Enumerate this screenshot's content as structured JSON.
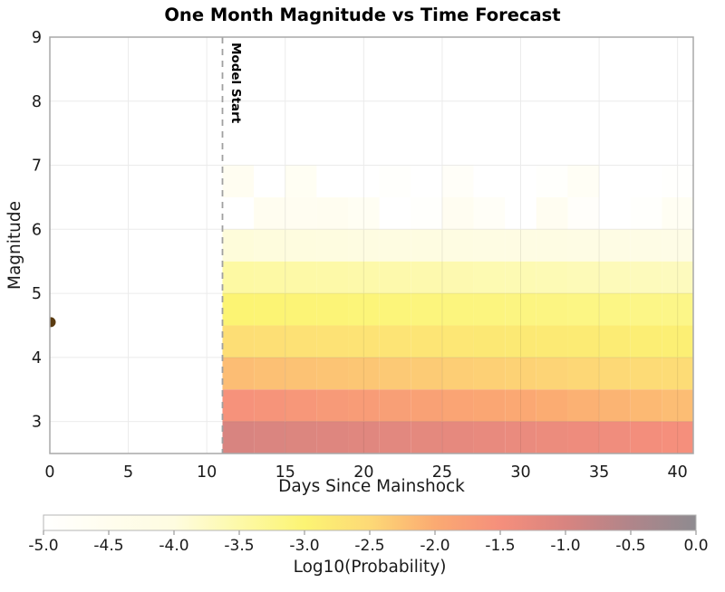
{
  "title": "One Month Magnitude vs Time Forecast",
  "chart_data": {
    "type": "heatmap",
    "title": "One Month Magnitude vs Time Forecast",
    "xlabel": "Days Since Mainshock",
    "ylabel": "Magnitude",
    "xlim": [
      0,
      41
    ],
    "ylim": [
      2.5,
      9
    ],
    "x_ticks": [
      0,
      5,
      10,
      15,
      20,
      25,
      30,
      35,
      40
    ],
    "y_ticks": [
      3,
      4,
      5,
      6,
      7,
      8,
      9
    ],
    "grid": true,
    "grid_color": "#ebebeb",
    "axis_border_color": "#a8a8a8",
    "model_start": {
      "day": 11,
      "label": "Model Start",
      "line_color": "#a0a0a0",
      "line_style": "dashed"
    },
    "mainshock_point": {
      "day": 0,
      "magnitude": 4.55,
      "color": "#5a3b10"
    },
    "bins": {
      "day_edges": [
        11,
        13,
        15,
        17,
        19,
        21,
        23,
        25,
        27,
        29,
        31,
        33,
        35,
        37,
        39,
        41
      ],
      "magnitude_edges": [
        2.5,
        3.0,
        3.5,
        4.0,
        4.5,
        5.0,
        5.5,
        6.0,
        6.5,
        7.0
      ],
      "rows_order": "magnitude ascending (bottom row first)"
    },
    "values_log10_probability": [
      [
        -1.0,
        -1.03,
        -1.07,
        -1.1,
        -1.14,
        -1.17,
        -1.21,
        -1.24,
        -1.28,
        -1.31,
        -1.35,
        -1.38,
        -1.42,
        -1.46,
        -1.5
      ],
      [
        -1.55,
        -1.6,
        -1.65,
        -1.7,
        -1.74,
        -1.79,
        -1.84,
        -1.88,
        -1.93,
        -1.97,
        -2.02,
        -2.07,
        -2.11,
        -2.16,
        -2.2
      ],
      [
        -2.2,
        -2.23,
        -2.25,
        -2.28,
        -2.3,
        -2.33,
        -2.35,
        -2.38,
        -2.4,
        -2.43,
        -2.45,
        -2.48,
        -2.5,
        -2.53,
        -2.55
      ],
      [
        -2.6,
        -2.62,
        -2.64,
        -2.66,
        -2.69,
        -2.71,
        -2.73,
        -2.75,
        -2.77,
        -2.79,
        -2.81,
        -2.84,
        -2.86,
        -2.88,
        -2.9
      ],
      [
        -3.0,
        -3.01,
        -3.03,
        -3.04,
        -3.06,
        -3.07,
        -3.09,
        -3.1,
        -3.11,
        -3.13,
        -3.14,
        -3.16,
        -3.17,
        -3.19,
        -3.2
      ],
      [
        -3.45,
        -3.47,
        -3.49,
        -3.5,
        -3.52,
        -3.54,
        -3.55,
        -3.57,
        -3.59,
        -3.6,
        -3.62,
        -3.64,
        -3.66,
        -3.68,
        -3.7
      ],
      [
        -3.95,
        -3.97,
        -3.99,
        -4.0,
        -4.02,
        -4.04,
        -4.05,
        -4.07,
        -4.09,
        -4.1,
        -4.12,
        -4.14,
        -4.16,
        -4.18,
        -4.2
      ],
      [
        -5.0,
        -4.55,
        -4.6,
        -4.55,
        -4.65,
        -5.0,
        -4.9,
        -4.6,
        -4.75,
        -5.0,
        -4.6,
        -4.85,
        -5.0,
        -4.9,
        -4.65
      ],
      [
        -4.6,
        -5.0,
        -4.65,
        -5.0,
        -5.0,
        -4.9,
        -5.0,
        -4.8,
        -5.0,
        -5.0,
        -4.9,
        -4.7,
        -5.0,
        -5.0,
        -4.95
      ]
    ],
    "colorbar": {
      "label": "Log10(Probability)",
      "min": -5.0,
      "max": 0.0,
      "tick_values": [
        -5.0,
        -4.5,
        -4.0,
        -3.5,
        -3.0,
        -2.5,
        -2.0,
        -1.5,
        -1.0,
        -0.5,
        0.0
      ],
      "tick_labels": [
        "-5.0",
        "-4.5",
        "-4.0",
        "-3.5",
        "-3.0",
        "-2.5",
        "-2.0",
        "-1.5",
        "-1.0",
        "-0.5",
        "0.0"
      ],
      "stops": [
        {
          "value": -5.0,
          "color": "#ffffff"
        },
        {
          "value": -4.5,
          "color": "#fffdee"
        },
        {
          "value": -4.0,
          "color": "#fefce0"
        },
        {
          "value": -3.5,
          "color": "#fdf9a8"
        },
        {
          "value": -3.0,
          "color": "#fcf473"
        },
        {
          "value": -2.5,
          "color": "#fdd976"
        },
        {
          "value": -2.0,
          "color": "#fbaa72"
        },
        {
          "value": -1.5,
          "color": "#f58f7c"
        },
        {
          "value": -1.0,
          "color": "#d88480"
        },
        {
          "value": -0.5,
          "color": "#b0858a"
        },
        {
          "value": 0.0,
          "color": "#8e8b90"
        }
      ]
    }
  }
}
